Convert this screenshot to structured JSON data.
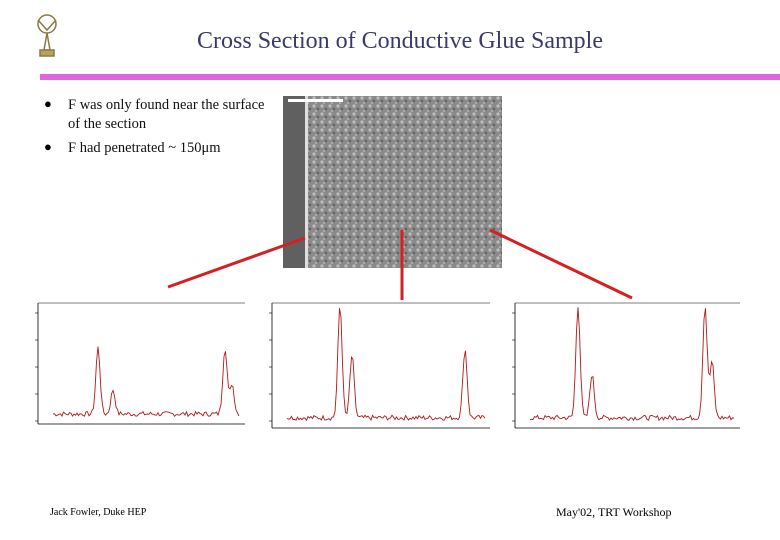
{
  "header": {
    "title": "Cross Section of Conductive Glue Sample"
  },
  "bullets": [
    "F was only found near the surface of the section",
    "F had penetrated ~ 150μm"
  ],
  "footer": {
    "author": "Jack Fowler, Duke HEP",
    "event": "May'02, TRT Workshop"
  }
}
